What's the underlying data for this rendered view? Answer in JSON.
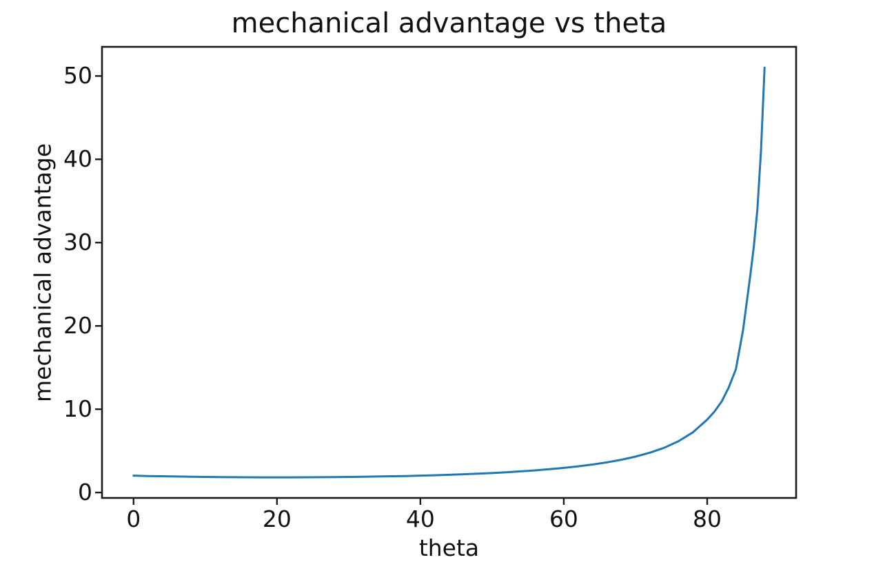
{
  "figure": {
    "background": "#ffffff",
    "text_color": "#111111",
    "spine_color": "#1a1a1a",
    "line_color": "#1f77b4"
  },
  "chart_data": {
    "type": "line",
    "title": "mechanical advantage vs theta",
    "xlabel": "theta",
    "ylabel": "mechanical advantage",
    "grid": false,
    "legend": null,
    "xlim": [
      -4.4,
      92.4
    ],
    "ylim": [
      -0.65,
      53.5
    ],
    "x_ticks": [
      0,
      20,
      40,
      60,
      80
    ],
    "y_ticks": [
      0,
      10,
      20,
      30,
      40,
      50
    ],
    "series": [
      {
        "name": "mechanical advantage",
        "color": "#1f77b4",
        "x": [
          0,
          2,
          4,
          6,
          8,
          10,
          12,
          14,
          16,
          18,
          20,
          22,
          24,
          26,
          28,
          30,
          32,
          34,
          36,
          38,
          40,
          42,
          44,
          46,
          48,
          50,
          52,
          54,
          56,
          58,
          60,
          62,
          64,
          66,
          68,
          70,
          72,
          74,
          76,
          78,
          80,
          81,
          82,
          83,
          84,
          85,
          86,
          86.5,
          87,
          87.5,
          88
        ],
        "y": [
          2.03,
          1.98,
          1.95,
          1.92,
          1.89,
          1.87,
          1.85,
          1.84,
          1.83,
          1.82,
          1.82,
          1.82,
          1.83,
          1.84,
          1.85,
          1.87,
          1.89,
          1.92,
          1.95,
          1.98,
          2.03,
          2.07,
          2.13,
          2.19,
          2.26,
          2.34,
          2.43,
          2.54,
          2.66,
          2.8,
          2.96,
          3.14,
          3.36,
          3.62,
          3.93,
          4.31,
          4.78,
          5.37,
          6.16,
          7.22,
          8.75,
          9.7,
          10.9,
          12.6,
          14.8,
          19.5,
          26.0,
          29.5,
          34.0,
          41.0,
          51.0
        ]
      }
    ]
  }
}
